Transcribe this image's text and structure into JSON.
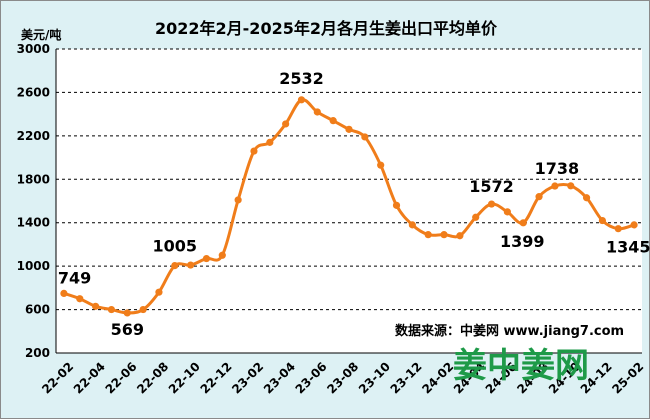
{
  "chart_data": {
    "type": "line",
    "title": "2022年2月-2025年2月各月生姜出口平均单价",
    "ylabel": "美元/吨",
    "ylim": [
      200,
      3000
    ],
    "yticks": [
      200,
      600,
      1000,
      1400,
      1800,
      2200,
      2600,
      3000
    ],
    "grid": "horizontal dashed",
    "line_color": "#f07d1a",
    "xtick_labels": [
      "22-02",
      "22-04",
      "22-06",
      "22-08",
      "22-10",
      "22-12",
      "23-02",
      "23-04",
      "23-06",
      "23-08",
      "23-10",
      "23-12",
      "24-02",
      "24-04",
      "24-06",
      "24-08",
      "24-10",
      "24-12",
      "25-02"
    ],
    "series": [
      {
        "values": [
          749,
          700,
          630,
          600,
          569,
          600,
          760,
          1005,
          1010,
          1070,
          1100,
          1610,
          2060,
          2140,
          2310,
          2532,
          2420,
          2340,
          2260,
          2190,
          1930,
          1560,
          1380,
          1290,
          1290,
          1280,
          1450,
          1572,
          1500,
          1399,
          1640,
          1738,
          1740,
          1630,
          1420,
          1345,
          1380
        ]
      }
    ],
    "data_labels": [
      {
        "index": 0,
        "text": "749"
      },
      {
        "index": 4,
        "text": "569"
      },
      {
        "index": 7,
        "text": "1005"
      },
      {
        "index": 15,
        "text": "2532"
      },
      {
        "index": 27,
        "text": "1572"
      },
      {
        "index": 29,
        "text": "1399"
      },
      {
        "index": 31,
        "text": "1738"
      },
      {
        "index": 35,
        "text": "1345"
      }
    ],
    "source": "数据来源：中姜网 www.jiang7.com",
    "watermark": "姜中姜网"
  }
}
